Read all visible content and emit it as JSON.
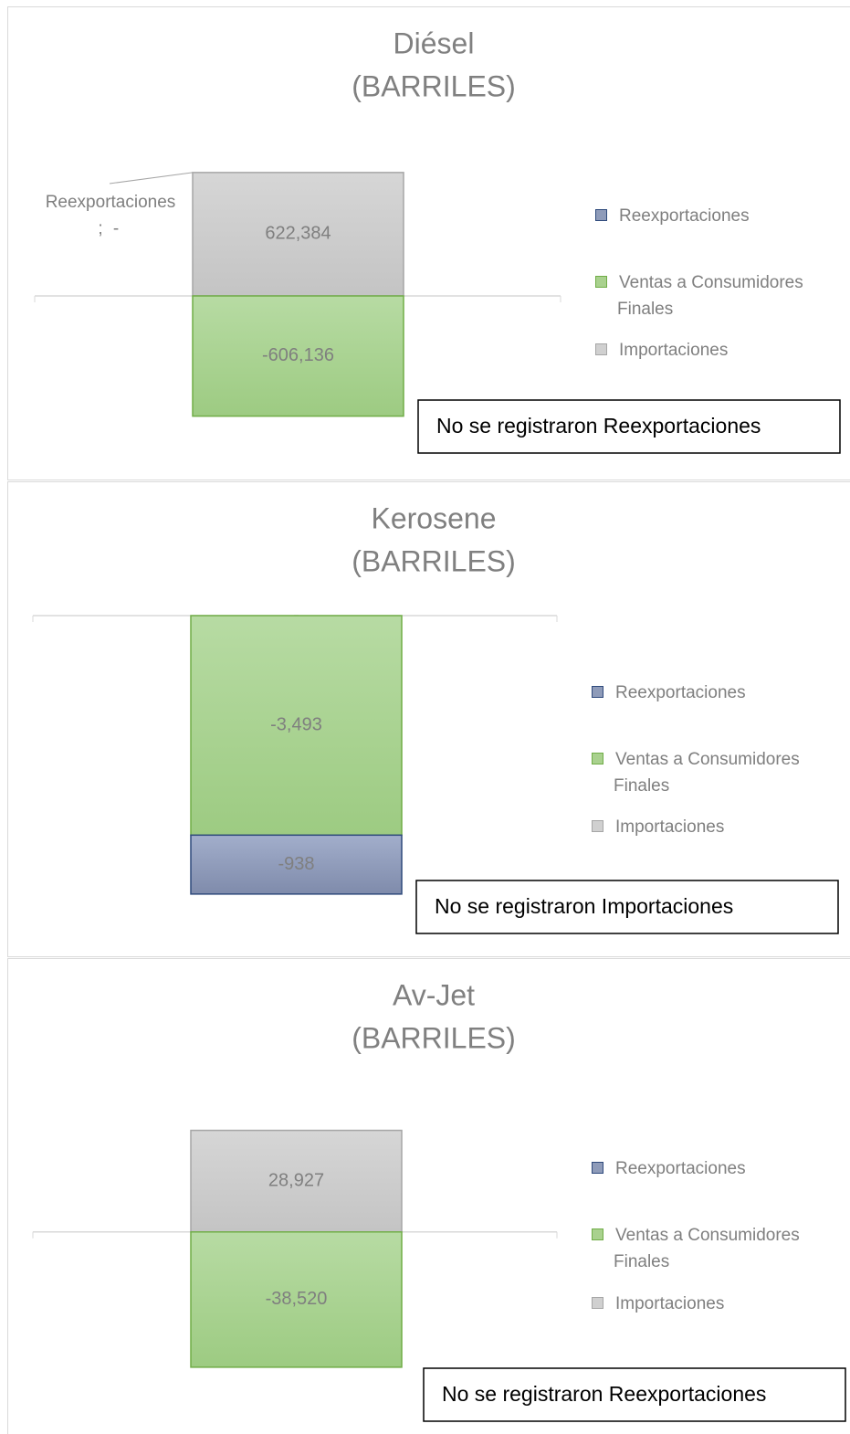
{
  "chart_data": [
    {
      "type": "bar",
      "title": "Diésel",
      "subtitle": "(BARRILES)",
      "categories": [
        null
      ],
      "series": [
        {
          "name": "Reexportaciones",
          "color": "#8e9bb9",
          "values": [
            0
          ],
          "value_labels": [
            "-"
          ]
        },
        {
          "name": "Ventas a Consumidores Finales",
          "color": "#a9d18e",
          "values": [
            -606136
          ],
          "value_labels": [
            "-606,136"
          ]
        },
        {
          "name": "Importaciones",
          "color": "#d0d0d0",
          "values": [
            622384
          ],
          "value_labels": [
            "622,384"
          ]
        }
      ],
      "label_separator": ";",
      "ylim": [
        -700000,
        700000
      ],
      "annotation": "No se registraron Reexportaciones",
      "legend": "right"
    },
    {
      "type": "bar",
      "title": "Kerosene",
      "subtitle": "(BARRILES)",
      "categories": [
        null
      ],
      "series": [
        {
          "name": "Reexportaciones",
          "color": "#8e9bb9",
          "values": [
            -938
          ],
          "value_labels": [
            "-938"
          ]
        },
        {
          "name": "Ventas a Consumidores Finales",
          "color": "#a9d18e",
          "values": [
            -3493
          ],
          "value_labels": [
            "-3,493"
          ]
        },
        {
          "name": "Importaciones",
          "color": "#d0d0d0",
          "values": [
            0
          ],
          "value_labels": [
            "-"
          ]
        }
      ],
      "ylim": [
        -5000,
        0
      ],
      "annotation": "No se registraron Importaciones",
      "legend": "right"
    },
    {
      "type": "bar",
      "title": "Av-Jet",
      "subtitle": "(BARRILES)",
      "categories": [
        null
      ],
      "series": [
        {
          "name": "Reexportaciones",
          "color": "#8e9bb9",
          "values": [
            0
          ],
          "value_labels": [
            null
          ]
        },
        {
          "name": "Ventas a Consumidores Finales",
          "color": "#a9d18e",
          "values": [
            -38520
          ],
          "value_labels": [
            "-38,520"
          ]
        },
        {
          "name": "Importaciones",
          "color": "#d0d0d0",
          "values": [
            28927
          ],
          "value_labels": [
            "28,927"
          ]
        }
      ],
      "ylim": [
        -50000,
        40000
      ],
      "annotation": "No se registraron Reexportaciones",
      "legend": "right"
    }
  ]
}
